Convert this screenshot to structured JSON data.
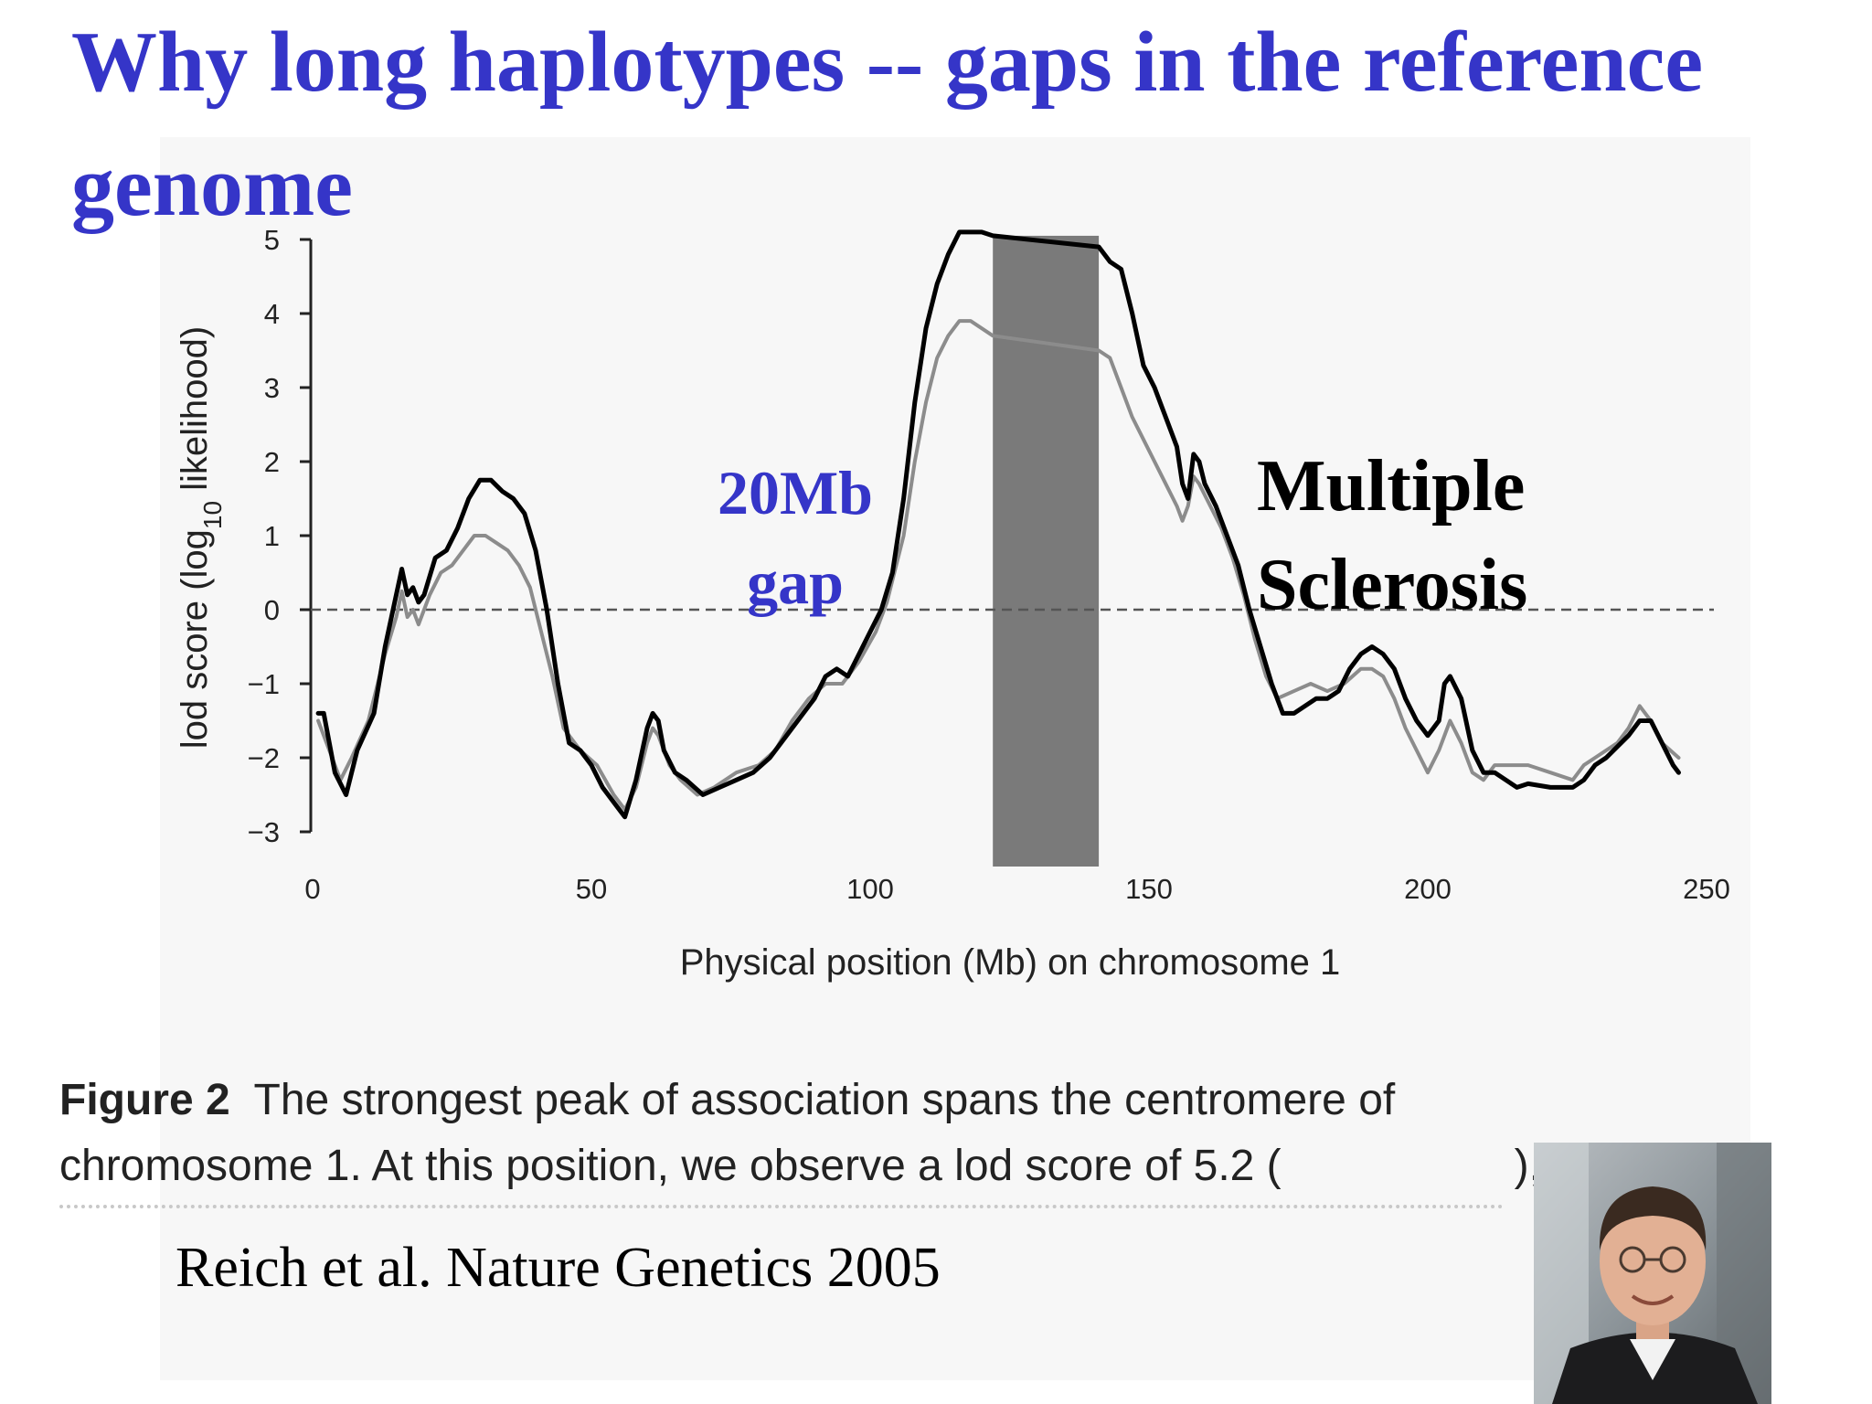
{
  "slide": {
    "title": "Why long haplotypes -- gaps in the reference genome"
  },
  "annotations": {
    "gap_line1": "20Mb",
    "gap_line2": "gap",
    "disease_line1": "Multiple",
    "disease_line2": "Sclerosis"
  },
  "caption": {
    "label": "Figure 2",
    "line1": "The strongest peak of association spans the centromere of",
    "line2": "chromosome 1. At this position, we observe a lod score of 5.2 (",
    "line2_end": "),"
  },
  "citation": "Reich et al. Nature Genetics 2005",
  "photo": {
    "description_icon": "person-photo-icon"
  },
  "colors": {
    "title": "#3535c8",
    "series_black": "#000000",
    "series_gray": "#8c8c8c",
    "gap_bar": "#7a7a7a"
  },
  "chart_data": {
    "type": "line",
    "xlabel": "Physical position (Mb) on chromosome 1",
    "ylabel": "lod score (log10 likelihood)",
    "xlim": [
      0,
      250
    ],
    "ylim": [
      -3,
      5
    ],
    "xticks": [
      0,
      50,
      100,
      150,
      200,
      250
    ],
    "yticks": [
      5,
      4,
      3,
      2,
      1,
      0,
      -1,
      -2,
      -3
    ],
    "grid": false,
    "reference_line": {
      "y": 0,
      "style": "dashed"
    },
    "shaded_region": {
      "x_start": 122,
      "x_end": 141,
      "y_top": 5.05
    },
    "series": [
      {
        "color": "#000000",
        "points": [
          [
            1,
            -1.4
          ],
          [
            2,
            -1.4
          ],
          [
            3,
            -1.8
          ],
          [
            4,
            -2.2
          ],
          [
            6,
            -2.5
          ],
          [
            8,
            -1.9
          ],
          [
            11,
            -1.4
          ],
          [
            13,
            -0.5
          ],
          [
            15,
            0.2
          ],
          [
            16,
            0.55
          ],
          [
            17,
            0.2
          ],
          [
            18,
            0.3
          ],
          [
            19,
            0.1
          ],
          [
            20,
            0.2
          ],
          [
            22,
            0.7
          ],
          [
            24,
            0.8
          ],
          [
            26,
            1.1
          ],
          [
            28,
            1.5
          ],
          [
            30,
            1.75
          ],
          [
            32,
            1.75
          ],
          [
            34,
            1.6
          ],
          [
            36,
            1.5
          ],
          [
            38,
            1.3
          ],
          [
            40,
            0.8
          ],
          [
            42,
            0.0
          ],
          [
            44,
            -1.0
          ],
          [
            46,
            -1.8
          ],
          [
            48,
            -1.9
          ],
          [
            50,
            -2.1
          ],
          [
            52,
            -2.4
          ],
          [
            54,
            -2.6
          ],
          [
            56,
            -2.8
          ],
          [
            58,
            -2.3
          ],
          [
            60,
            -1.6
          ],
          [
            61,
            -1.4
          ],
          [
            62,
            -1.5
          ],
          [
            63,
            -1.9
          ],
          [
            65,
            -2.2
          ],
          [
            67,
            -2.3
          ],
          [
            70,
            -2.5
          ],
          [
            73,
            -2.4
          ],
          [
            76,
            -2.3
          ],
          [
            79,
            -2.2
          ],
          [
            82,
            -2.0
          ],
          [
            85,
            -1.7
          ],
          [
            88,
            -1.4
          ],
          [
            90,
            -1.2
          ],
          [
            92,
            -0.9
          ],
          [
            94,
            -0.8
          ],
          [
            96,
            -0.9
          ],
          [
            98,
            -0.6
          ],
          [
            100,
            -0.3
          ],
          [
            102,
            0.0
          ],
          [
            104,
            0.5
          ],
          [
            106,
            1.5
          ],
          [
            108,
            2.8
          ],
          [
            110,
            3.8
          ],
          [
            112,
            4.4
          ],
          [
            114,
            4.8
          ],
          [
            116,
            5.1
          ],
          [
            118,
            5.1
          ],
          [
            120,
            5.1
          ],
          [
            122,
            5.05
          ],
          [
            141,
            4.9
          ],
          [
            143,
            4.7
          ],
          [
            145,
            4.6
          ],
          [
            147,
            4.0
          ],
          [
            149,
            3.3
          ],
          [
            151,
            3.0
          ],
          [
            153,
            2.6
          ],
          [
            155,
            2.2
          ],
          [
            156,
            1.7
          ],
          [
            157,
            1.5
          ],
          [
            158,
            2.1
          ],
          [
            159,
            2.0
          ],
          [
            160,
            1.7
          ],
          [
            162,
            1.4
          ],
          [
            164,
            1.0
          ],
          [
            166,
            0.6
          ],
          [
            168,
            0.0
          ],
          [
            170,
            -0.5
          ],
          [
            172,
            -1.0
          ],
          [
            174,
            -1.4
          ],
          [
            176,
            -1.4
          ],
          [
            178,
            -1.3
          ],
          [
            180,
            -1.2
          ],
          [
            182,
            -1.2
          ],
          [
            184,
            -1.1
          ],
          [
            186,
            -0.8
          ],
          [
            188,
            -0.6
          ],
          [
            190,
            -0.5
          ],
          [
            192,
            -0.6
          ],
          [
            194,
            -0.8
          ],
          [
            196,
            -1.2
          ],
          [
            198,
            -1.5
          ],
          [
            200,
            -1.7
          ],
          [
            202,
            -1.5
          ],
          [
            203,
            -1.0
          ],
          [
            204,
            -0.9
          ],
          [
            206,
            -1.2
          ],
          [
            208,
            -1.9
          ],
          [
            210,
            -2.2
          ],
          [
            212,
            -2.2
          ],
          [
            214,
            -2.3
          ],
          [
            216,
            -2.4
          ],
          [
            218,
            -2.35
          ],
          [
            222,
            -2.4
          ],
          [
            226,
            -2.4
          ],
          [
            228,
            -2.3
          ],
          [
            230,
            -2.1
          ],
          [
            232,
            -2.0
          ],
          [
            234,
            -1.85
          ],
          [
            236,
            -1.7
          ],
          [
            238,
            -1.5
          ],
          [
            240,
            -1.5
          ],
          [
            242,
            -1.8
          ],
          [
            244,
            -2.1
          ],
          [
            245,
            -2.2
          ]
        ]
      },
      {
        "color": "#8c8c8c",
        "points": [
          [
            1,
            -1.5
          ],
          [
            3,
            -1.9
          ],
          [
            5,
            -2.3
          ],
          [
            7,
            -2.0
          ],
          [
            10,
            -1.5
          ],
          [
            13,
            -0.6
          ],
          [
            15,
            -0.1
          ],
          [
            16,
            0.25
          ],
          [
            17,
            -0.1
          ],
          [
            18,
            0.0
          ],
          [
            19,
            -0.2
          ],
          [
            21,
            0.2
          ],
          [
            23,
            0.5
          ],
          [
            25,
            0.6
          ],
          [
            27,
            0.8
          ],
          [
            29,
            1.0
          ],
          [
            31,
            1.0
          ],
          [
            33,
            0.9
          ],
          [
            35,
            0.8
          ],
          [
            37,
            0.6
          ],
          [
            39,
            0.3
          ],
          [
            41,
            -0.3
          ],
          [
            43,
            -0.9
          ],
          [
            45,
            -1.6
          ],
          [
            48,
            -1.9
          ],
          [
            51,
            -2.1
          ],
          [
            54,
            -2.5
          ],
          [
            56,
            -2.7
          ],
          [
            58,
            -2.4
          ],
          [
            60,
            -1.8
          ],
          [
            61,
            -1.6
          ],
          [
            62,
            -1.7
          ],
          [
            64,
            -2.1
          ],
          [
            66,
            -2.3
          ],
          [
            69,
            -2.5
          ],
          [
            72,
            -2.4
          ],
          [
            76,
            -2.2
          ],
          [
            80,
            -2.1
          ],
          [
            83,
            -1.9
          ],
          [
            86,
            -1.5
          ],
          [
            89,
            -1.2
          ],
          [
            92,
            -1.0
          ],
          [
            95,
            -1.0
          ],
          [
            98,
            -0.7
          ],
          [
            101,
            -0.3
          ],
          [
            103,
            0.1
          ],
          [
            106,
            1.0
          ],
          [
            108,
            2.0
          ],
          [
            110,
            2.8
          ],
          [
            112,
            3.4
          ],
          [
            114,
            3.7
          ],
          [
            116,
            3.9
          ],
          [
            118,
            3.9
          ],
          [
            120,
            3.8
          ],
          [
            122,
            3.7
          ],
          [
            141,
            3.5
          ],
          [
            143,
            3.4
          ],
          [
            145,
            3.0
          ],
          [
            147,
            2.6
          ],
          [
            149,
            2.3
          ],
          [
            151,
            2.0
          ],
          [
            153,
            1.7
          ],
          [
            155,
            1.4
          ],
          [
            156,
            1.2
          ],
          [
            157,
            1.4
          ],
          [
            158,
            1.8
          ],
          [
            159,
            1.7
          ],
          [
            161,
            1.4
          ],
          [
            163,
            1.1
          ],
          [
            165,
            0.7
          ],
          [
            167,
            0.2
          ],
          [
            169,
            -0.4
          ],
          [
            171,
            -0.9
          ],
          [
            173,
            -1.2
          ],
          [
            176,
            -1.1
          ],
          [
            179,
            -1.0
          ],
          [
            182,
            -1.1
          ],
          [
            185,
            -1.0
          ],
          [
            188,
            -0.8
          ],
          [
            190,
            -0.8
          ],
          [
            192,
            -0.9
          ],
          [
            194,
            -1.2
          ],
          [
            196,
            -1.6
          ],
          [
            198,
            -1.9
          ],
          [
            200,
            -2.2
          ],
          [
            202,
            -1.9
          ],
          [
            204,
            -1.5
          ],
          [
            206,
            -1.8
          ],
          [
            208,
            -2.2
          ],
          [
            210,
            -2.3
          ],
          [
            212,
            -2.1
          ],
          [
            214,
            -2.1
          ],
          [
            218,
            -2.1
          ],
          [
            222,
            -2.2
          ],
          [
            226,
            -2.3
          ],
          [
            228,
            -2.1
          ],
          [
            230,
            -2.0
          ],
          [
            234,
            -1.8
          ],
          [
            236,
            -1.6
          ],
          [
            238,
            -1.3
          ],
          [
            240,
            -1.5
          ],
          [
            242,
            -1.8
          ],
          [
            245,
            -2.0
          ]
        ]
      }
    ]
  }
}
